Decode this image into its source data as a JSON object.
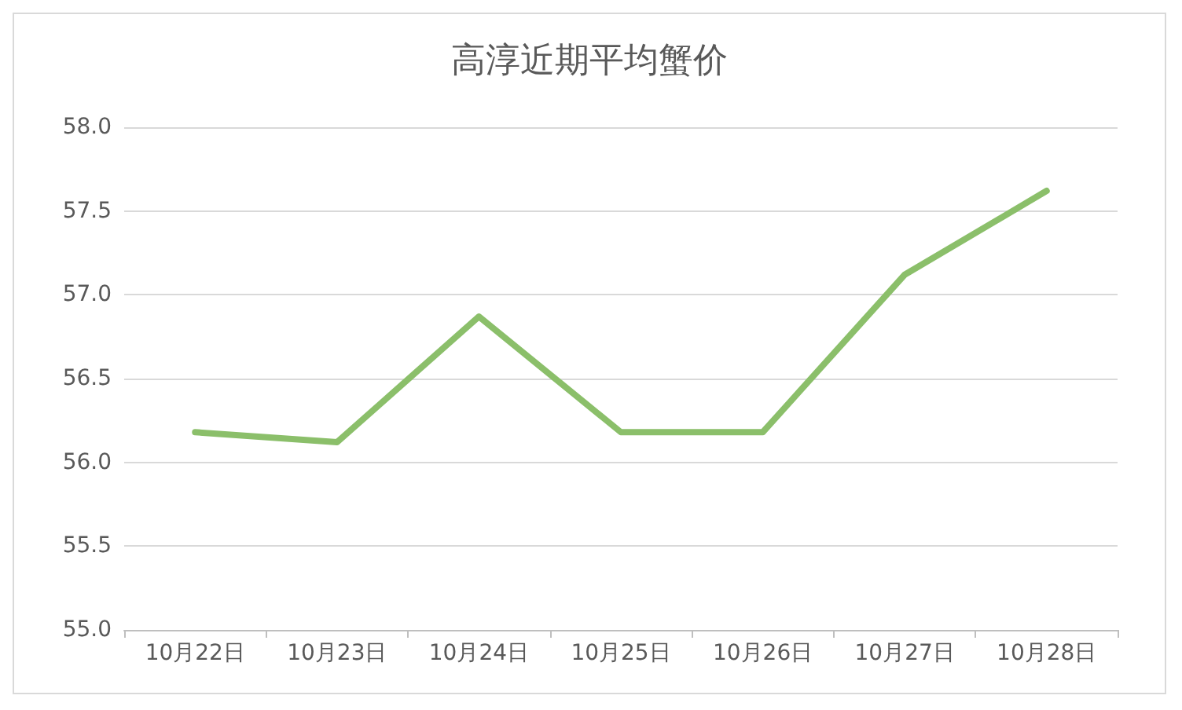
{
  "chart_data": {
    "type": "line",
    "title": "高淳近期平均蟹价",
    "categories": [
      "10月22日",
      "10月23日",
      "10月24日",
      "10月25日",
      "10月26日",
      "10月27日",
      "10月28日"
    ],
    "series": [
      {
        "color": "#8bbf6a",
        "values": [
          56.18,
          56.12,
          56.87,
          56.18,
          56.18,
          57.12,
          57.62
        ]
      }
    ],
    "ylim": [
      55,
      58
    ],
    "yticks": [
      {
        "value": 55,
        "label": "55.0"
      },
      {
        "value": 55.5,
        "label": "55.5"
      },
      {
        "value": 56,
        "label": "56.0"
      },
      {
        "value": 56.5,
        "label": "56.5"
      },
      {
        "value": 57,
        "label": "57.0"
      },
      {
        "value": 57.5,
        "label": "57.5"
      },
      {
        "value": 58,
        "label": "58.0"
      }
    ],
    "grid": "y",
    "marker": "none",
    "line_style": "solid"
  }
}
